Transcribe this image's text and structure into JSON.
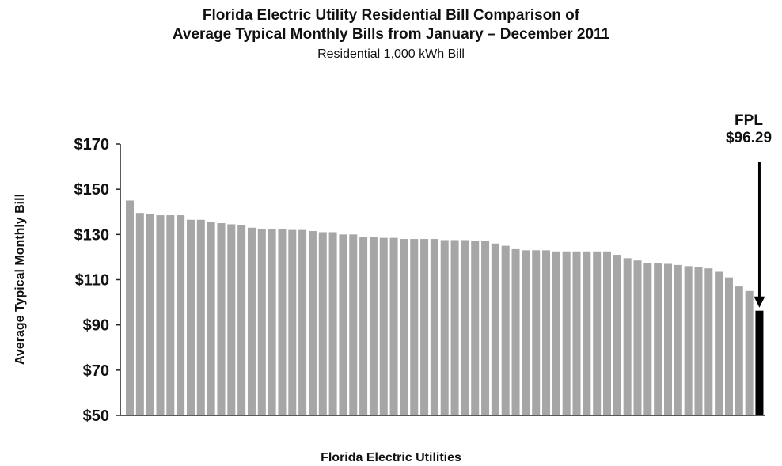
{
  "title_line1": "Florida Electric Utility Residential Bill Comparison of",
  "title_line2": "Average Typical Monthly Bills from January – December 2011",
  "subtitle": "Residential 1,000 kWh Bill",
  "chart_data": {
    "type": "bar",
    "title": "Florida Electric Utility Residential Bill Comparison of Average Typical Monthly Bills from January – December 2011",
    "subtitle": "Residential 1,000 kWh Bill",
    "xlabel": "Florida Electric Utilities",
    "ylabel": "Average Typical Monthly Bill",
    "ylim": [
      50,
      170
    ],
    "yticks": [
      {
        "value": 170,
        "label": "$170"
      },
      {
        "value": 150,
        "label": "$150"
      },
      {
        "value": 130,
        "label": "$130"
      },
      {
        "value": 110,
        "label": "$110"
      },
      {
        "value": 90,
        "label": "$90"
      },
      {
        "value": 70,
        "label": "$70"
      },
      {
        "value": 50,
        "label": "$50"
      }
    ],
    "values": [
      145,
      139.5,
      139,
      138.5,
      138.5,
      138.5,
      136.5,
      136.5,
      135.5,
      135,
      134.5,
      134,
      133,
      132.5,
      132.5,
      132.5,
      132,
      132,
      131.5,
      131,
      131,
      130,
      130,
      129,
      129,
      128.5,
      128.5,
      128,
      128,
      128,
      128,
      127.5,
      127.5,
      127.5,
      127,
      127,
      126,
      125,
      123.5,
      123,
      123,
      123,
      122.5,
      122.5,
      122.5,
      122.5,
      122.5,
      122.5,
      121,
      119.5,
      118.5,
      117.5,
      117.5,
      117,
      116.5,
      116,
      115.5,
      115,
      113.5,
      111,
      107,
      105,
      96.29
    ],
    "highlight": {
      "index": 62,
      "label": "FPL",
      "value_label": "$96.29",
      "color": "#000000"
    },
    "bar_color": "#a6a6a6",
    "grid": false,
    "legend": "none"
  }
}
